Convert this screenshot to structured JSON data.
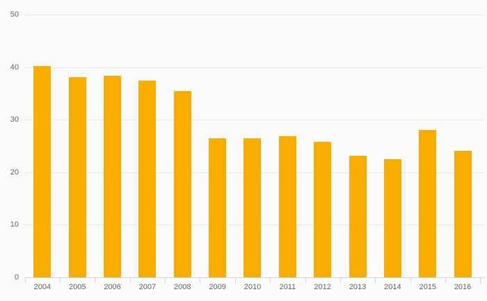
{
  "chart_data": {
    "type": "bar",
    "title": "",
    "xlabel": "",
    "ylabel": "",
    "categories": [
      "2004",
      "2005",
      "2006",
      "2007",
      "2008",
      "2009",
      "2010",
      "2011",
      "2012",
      "2013",
      "2014",
      "2015",
      "2016"
    ],
    "values": [
      40.2,
      38.1,
      38.4,
      37.4,
      35.4,
      26.4,
      26.5,
      26.8,
      25.8,
      23.2,
      22.5,
      28,
      24.1
    ],
    "ylim": [
      0,
      50
    ],
    "yticks": [
      0,
      10,
      20,
      30,
      40,
      50
    ],
    "grid": "horizontal",
    "legend": "none",
    "colors": {
      "bar": "#F9AD00",
      "gridline": "#E6E6E6",
      "axis_line": "#CCD6EB",
      "tick": "#CCD6EB",
      "label": "#666666",
      "background": "#FAFAFA"
    }
  }
}
